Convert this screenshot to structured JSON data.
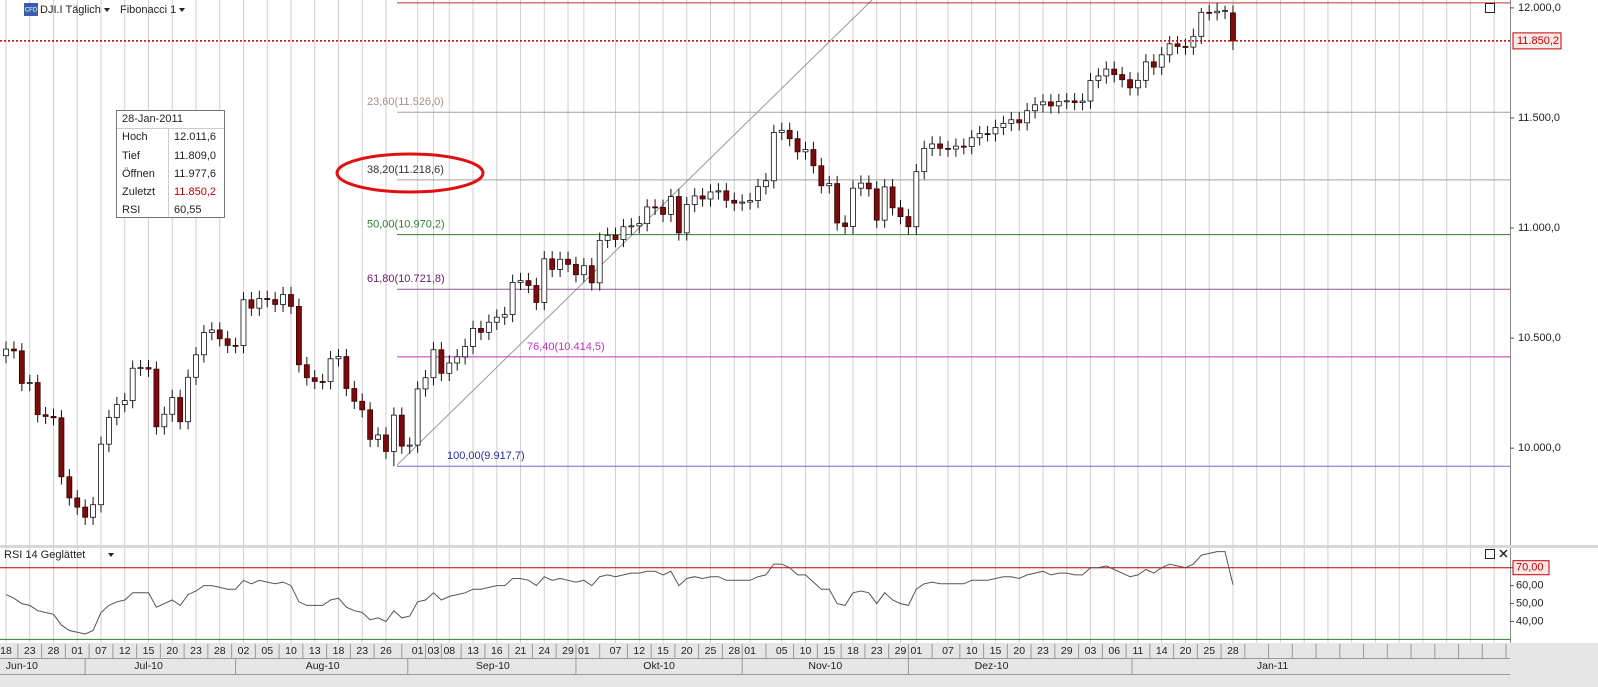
{
  "header": {
    "symbol": "DJI.I Täglich",
    "indicator": "Fibonacci 1",
    "logo": "CFD"
  },
  "info_box": {
    "date": "28-Jan-2011",
    "rows": [
      [
        "Hoch",
        "12.011,6"
      ],
      [
        "Tief",
        "11.809,0"
      ],
      [
        "Öffnen",
        "11.977,6"
      ],
      [
        "Zuletzt",
        "11.850,2"
      ],
      [
        "RSI",
        "60,55"
      ]
    ]
  },
  "x_axis": {
    "xlim": [
      -0.76,
      190
    ],
    "xticks": [
      {
        "value": 0,
        "label": "18"
      },
      {
        "value": 3,
        "label": "23"
      },
      {
        "value": 6,
        "label": "28"
      },
      {
        "value": 9,
        "label": "01"
      },
      {
        "value": 12,
        "label": "07"
      },
      {
        "value": 15,
        "label": "12"
      },
      {
        "value": 18,
        "label": "15"
      },
      {
        "value": 21,
        "label": "20"
      },
      {
        "value": 24,
        "label": "23"
      },
      {
        "value": 27,
        "label": "28"
      },
      {
        "value": 30,
        "label": "02"
      },
      {
        "value": 33,
        "label": "05"
      },
      {
        "value": 36,
        "label": "10"
      },
      {
        "value": 39,
        "label": "13"
      },
      {
        "value": 42,
        "label": "18"
      },
      {
        "value": 45,
        "label": "23"
      },
      {
        "value": 48,
        "label": "26"
      },
      {
        "value": 52,
        "label": "01"
      },
      {
        "value": 54,
        "label": "03"
      },
      {
        "value": 56,
        "label": "08"
      },
      {
        "value": 59,
        "label": "13"
      },
      {
        "value": 62,
        "label": "16"
      },
      {
        "value": 65,
        "label": "21"
      },
      {
        "value": 68,
        "label": "24"
      },
      {
        "value": 71,
        "label": "29"
      },
      {
        "value": 73,
        "label": "01"
      },
      {
        "value": 77,
        "label": "07"
      },
      {
        "value": 80,
        "label": "12"
      },
      {
        "value": 83,
        "label": "15"
      },
      {
        "value": 86,
        "label": "20"
      },
      {
        "value": 89,
        "label": "25"
      },
      {
        "value": 92,
        "label": "28"
      },
      {
        "value": 94,
        "label": "01"
      },
      {
        "value": 98,
        "label": "05"
      },
      {
        "value": 101,
        "label": "10"
      },
      {
        "value": 104,
        "label": "15"
      },
      {
        "value": 107,
        "label": "18"
      },
      {
        "value": 110,
        "label": "23"
      },
      {
        "value": 113,
        "label": "29"
      },
      {
        "value": 115,
        "label": "01"
      },
      {
        "value": 119,
        "label": "07"
      },
      {
        "value": 122,
        "label": "10"
      },
      {
        "value": 125,
        "label": "15"
      },
      {
        "value": 128,
        "label": "20"
      },
      {
        "value": 131,
        "label": "23"
      },
      {
        "value": 134,
        "label": "29"
      },
      {
        "value": 137,
        "label": "03"
      },
      {
        "value": 140,
        "label": "06"
      },
      {
        "value": 143,
        "label": "11"
      },
      {
        "value": 146,
        "label": "14"
      },
      {
        "value": 149,
        "label": "20"
      },
      {
        "value": 152,
        "label": "25"
      },
      {
        "value": 155,
        "label": "28"
      }
    ],
    "month_labels": [
      {
        "value": 2,
        "label": "Jun-10"
      },
      {
        "value": 18,
        "label": "Jul-10"
      },
      {
        "value": 40,
        "label": "Aug-10"
      },
      {
        "value": 61.5,
        "label": "Sep-10"
      },
      {
        "value": 82.5,
        "label": "Okt-10"
      },
      {
        "value": 103.5,
        "label": "Nov-10"
      },
      {
        "value": 124.5,
        "label": "Dez-10"
      },
      {
        "value": 160,
        "label": "Jan-11"
      }
    ]
  },
  "chart_data": [
    {
      "type": "candlestick",
      "title": "DJI.I Täglich",
      "subtitle": "Fibonacci 1",
      "up_color": "#ffffff",
      "down_color": "#7a0c0c",
      "grid": true,
      "ylim": [
        9560,
        12036
      ],
      "yticks": [
        {
          "value": 12000,
          "label": "12.000,0"
        },
        {
          "value": 11500,
          "label": "11.500,0"
        },
        {
          "value": 11000,
          "label": "11.000,0"
        },
        {
          "value": 10500,
          "label": "10.500,0"
        },
        {
          "value": 10000,
          "label": "10.000,0"
        }
      ],
      "open": [
        10420,
        10450,
        10442,
        10294,
        10298,
        10152,
        10144,
        10138,
        9870,
        9774,
        9732,
        9686,
        9743,
        10018,
        10139,
        10198,
        10216,
        10363,
        10366,
        10359,
        10097,
        10154,
        10230,
        10120,
        10322,
        10424,
        10525,
        10537,
        10497,
        10467,
        10466,
        10674,
        10636,
        10680,
        10675,
        10653,
        10698,
        10644,
        10379,
        10320,
        10303,
        10302,
        10406,
        10416,
        10271,
        10213,
        10174,
        10040,
        10060,
        9985,
        10150,
        10009,
        10014,
        10269,
        10320,
        10447,
        10340,
        10387,
        10415,
        10462,
        10544,
        10526,
        10572,
        10595,
        10607,
        10753,
        10761,
        10739,
        10662,
        10860,
        10812,
        10858,
        10835,
        10788,
        10829,
        10751,
        10944,
        10967,
        10948,
        11006,
        11010,
        11020,
        11096,
        11094,
        11062,
        11143,
        10978,
        11107,
        11146,
        11132,
        11164,
        11169,
        11126,
        11113,
        11118,
        11125,
        11188,
        11215,
        11434,
        11444,
        11406,
        11346,
        11357,
        11283,
        11192,
        11202,
        11023,
        11007,
        11181,
        11204,
        11178,
        11036,
        11187,
        11092,
        11052,
        11006,
        11256,
        11362,
        11382,
        11362,
        11359,
        11372,
        11370,
        11410,
        11429,
        11428,
        11457,
        11475,
        11492,
        11478,
        11533,
        11560,
        11573,
        11555,
        11575,
        11578,
        11570,
        11577,
        11670,
        11691,
        11722,
        11697,
        11674,
        11637,
        11671,
        11755,
        11731,
        11787,
        11837,
        11825,
        11822,
        11871,
        11980,
        11978,
        11985,
        11977.6
      ],
      "high": [
        10485,
        10485,
        10477,
        10333,
        10333,
        10187,
        10179,
        10173,
        9905,
        9809,
        9767,
        9778,
        10053,
        10174,
        10233,
        10251,
        10398,
        10401,
        10401,
        10394,
        10189,
        10265,
        10265,
        10357,
        10459,
        10560,
        10572,
        10572,
        10532,
        10502,
        10709,
        10709,
        10715,
        10715,
        10710,
        10733,
        10733,
        10679,
        10414,
        10355,
        10338,
        10441,
        10451,
        10451,
        10306,
        10248,
        10209,
        10095,
        10095,
        10185,
        10185,
        10049,
        10304,
        10355,
        10482,
        10482,
        10422,
        10450,
        10497,
        10579,
        10579,
        10607,
        10630,
        10642,
        10788,
        10796,
        10796,
        10774,
        10895,
        10895,
        10893,
        10893,
        10870,
        10864,
        10864,
        10979,
        11002,
        11002,
        11041,
        11045,
        11055,
        11131,
        11131,
        11129,
        11178,
        11178,
        11142,
        11181,
        11181,
        11199,
        11204,
        11204,
        11161,
        11153,
        11160,
        11223,
        11250,
        11469,
        11479,
        11479,
        11441,
        11392,
        11392,
        11318,
        11237,
        11237,
        11058,
        11216,
        11239,
        11239,
        11213,
        11222,
        11222,
        11127,
        11087,
        11291,
        11397,
        11417,
        11417,
        11397,
        11407,
        11407,
        11445,
        11464,
        11464,
        11492,
        11510,
        11527,
        11527,
        11568,
        11595,
        11608,
        11608,
        11610,
        11613,
        11613,
        11612,
        11705,
        11726,
        11757,
        11757,
        11732,
        11709,
        11706,
        11790,
        11790,
        11822,
        11872,
        11872,
        11860,
        11906,
        12000,
        12015,
        12022.8,
        12010,
        12011.6
      ],
      "low": [
        10385,
        10407,
        10259,
        10259,
        10117,
        10109,
        10103,
        9835,
        9739,
        9697,
        9651,
        9651,
        9708,
        9983,
        10104,
        10163,
        10181,
        10328,
        10324,
        10062,
        10062,
        10119,
        10085,
        10085,
        10287,
        10389,
        10490,
        10462,
        10432,
        10431,
        10431,
        10601,
        10601,
        10640,
        10618,
        10618,
        10609,
        10344,
        10285,
        10268,
        10267,
        10267,
        10371,
        10236,
        10178,
        10139,
        10005,
        10005,
        9950,
        9917.7,
        9974,
        9974,
        9979,
        10234,
        10285,
        10305,
        10305,
        10352,
        10380,
        10427,
        10491,
        10491,
        10537,
        10560,
        10572,
        10718,
        10704,
        10627,
        10627,
        10777,
        10777,
        10800,
        10753,
        10753,
        10716,
        10716,
        10909,
        10913,
        10913,
        10971,
        10975,
        10985,
        11059,
        11027,
        11027,
        10943,
        10943,
        11072,
        11097,
        11097,
        11129,
        11091,
        11078,
        11078,
        11083,
        11090,
        11153,
        11180,
        11399,
        11371,
        11311,
        11311,
        11248,
        11157,
        11157,
        10988,
        10972,
        10972,
        11146,
        11143,
        11001,
        11001,
        11057,
        11017,
        10971,
        10971,
        11221,
        11327,
        11327,
        11324,
        11324,
        11335,
        11335,
        11375,
        11393,
        11393,
        11422,
        11440,
        11443,
        11443,
        11498,
        11525,
        11520,
        11520,
        11540,
        11535,
        11535,
        11542,
        11635,
        11656,
        11662,
        11639,
        11602,
        11602,
        11636,
        11696,
        11696,
        11752,
        11790,
        11787,
        11787,
        11836,
        11943,
        11943,
        11950,
        11809.0
      ],
      "close": [
        10450,
        10442,
        10294,
        10298,
        10152,
        10144,
        10138,
        9870,
        9774,
        9732,
        9686,
        9743,
        10018,
        10139,
        10198,
        10216,
        10363,
        10366,
        10359,
        10097,
        10154,
        10230,
        10120,
        10322,
        10424,
        10525,
        10537,
        10497,
        10467,
        10466,
        10674,
        10636,
        10680,
        10675,
        10653,
        10698,
        10644,
        10379,
        10320,
        10303,
        10302,
        10406,
        10416,
        10271,
        10213,
        10174,
        10040,
        10060,
        9985,
        10150,
        10009,
        10014,
        10269,
        10320,
        10447,
        10340,
        10387,
        10415,
        10462,
        10544,
        10526,
        10572,
        10595,
        10607,
        10753,
        10761,
        10739,
        10662,
        10860,
        10812,
        10858,
        10835,
        10788,
        10829,
        10751,
        10944,
        10967,
        10948,
        11006,
        11010,
        11020,
        11096,
        11094,
        11062,
        11143,
        10978,
        11107,
        11146,
        11132,
        11164,
        11169,
        11126,
        11113,
        11118,
        11125,
        11188,
        11215,
        11434,
        11444,
        11406,
        11346,
        11357,
        11283,
        11192,
        11202,
        11023,
        11007,
        11181,
        11204,
        11178,
        11036,
        11187,
        11092,
        11052,
        11006,
        11256,
        11362,
        11382,
        11362,
        11359,
        11372,
        11370,
        11410,
        11429,
        11428,
        11457,
        11475,
        11492,
        11478,
        11533,
        11560,
        11573,
        11555,
        11575,
        11578,
        11570,
        11577,
        11670,
        11691,
        11722,
        11697,
        11674,
        11637,
        11671,
        11755,
        11731,
        11787,
        11837,
        11825,
        11822,
        11871,
        11980,
        11978,
        11985,
        11989,
        11850.2
      ],
      "fib_range": [
        9917.7,
        12022.8
      ],
      "fib_range_color": "#c03030",
      "fib_levels": [
        {
          "label": "23,60(11.526,0)",
          "value": 11526.0,
          "color": "#b08a8a",
          "line_color": "#a0a0a0"
        },
        {
          "label": "38,20(11.218,6)",
          "value": 11218.6,
          "color": "#333333",
          "line_color": "#a0a0a0"
        },
        {
          "label": "50,00(10.970,2)",
          "value": 10970.2,
          "color": "#2e7d32",
          "line_color": "#2e7d32"
        },
        {
          "label": "61,80(10.721,8)",
          "value": 10721.8,
          "color": "#6a1b6a",
          "line_color": "#8a5a8a"
        },
        {
          "label": "76,40(10.414,5)",
          "value": 10414.5,
          "color": "#c030c0",
          "line_color": "#c030c0"
        },
        {
          "label": "100,00(9.917,7)",
          "value": 9917.7,
          "color": "#2a2aa0",
          "line_color": "#6a6ad0"
        }
      ],
      "last_price": {
        "value": 11850.2,
        "label": "11.850,2",
        "color": "#c00000"
      }
    },
    {
      "type": "line",
      "title": "RSI 14 Geglättet",
      "color": "#555555",
      "ylim": [
        28,
        81
      ],
      "yticks": [
        {
          "value": 70,
          "label": "70,00"
        },
        {
          "value": 60,
          "label": "60,00"
        },
        {
          "value": 50,
          "label": "50,00"
        },
        {
          "value": 40,
          "label": "40,00"
        }
      ],
      "levels": [
        {
          "value": 70,
          "color": "#c00000"
        },
        {
          "value": 30,
          "color": "#2e7d32"
        }
      ],
      "values": [
        55,
        53,
        50,
        49,
        46,
        45,
        44,
        38,
        35,
        34,
        33,
        35,
        45,
        49,
        51,
        52,
        56,
        56,
        56,
        48,
        50,
        52,
        49,
        55,
        57,
        60,
        60,
        59,
        58,
        58,
        63,
        61,
        63,
        62,
        61,
        62,
        60,
        51,
        49,
        49,
        49,
        52,
        53,
        48,
        46,
        45,
        41,
        42,
        40,
        46,
        42,
        43,
        51,
        52,
        56,
        52,
        54,
        55,
        56,
        58,
        58,
        59,
        60,
        60,
        64,
        64,
        63,
        60,
        65,
        63,
        64,
        63,
        62,
        63,
        60,
        65,
        66,
        65,
        66,
        67,
        67,
        68,
        68,
        66,
        68,
        60,
        64,
        65,
        64,
        65,
        65,
        63,
        63,
        63,
        63,
        65,
        66,
        72,
        72,
        70,
        66,
        66,
        62,
        58,
        58,
        50,
        49,
        56,
        57,
        56,
        50,
        56,
        52,
        50,
        49,
        58,
        61,
        62,
        61,
        61,
        61,
        61,
        63,
        63,
        63,
        64,
        65,
        65,
        64,
        66,
        67,
        68,
        66,
        67,
        67,
        66,
        66,
        70,
        70,
        71,
        69,
        67,
        65,
        66,
        69,
        67,
        70,
        72,
        71,
        70,
        72,
        77,
        78,
        79,
        79,
        60.55
      ]
    }
  ]
}
